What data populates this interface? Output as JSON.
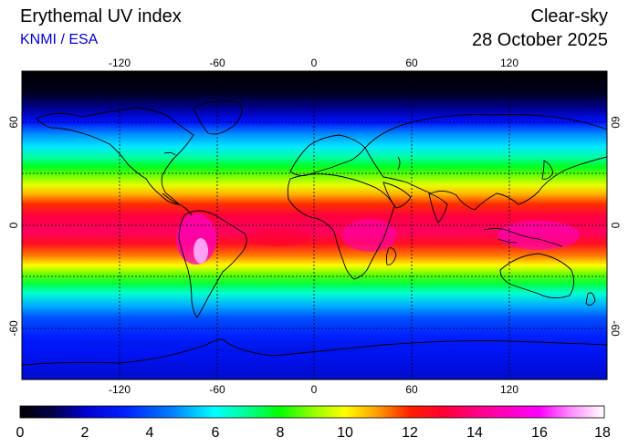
{
  "header": {
    "title": "Erythemal UV index",
    "source": "KNMI / ESA",
    "condition": "Clear-sky",
    "date": "28 October 2025"
  },
  "map": {
    "projection": "equirectangular",
    "lon_range": [
      -180,
      180
    ],
    "lat_range": [
      -90,
      90
    ],
    "graticule": "dashed",
    "lon_ticks": [
      "-120",
      "-60",
      "0",
      "60",
      "120"
    ],
    "lat_ticks": [
      "60",
      "0",
      "-60"
    ]
  },
  "colorbar": {
    "min": 0,
    "max": 18,
    "labels": [
      "0",
      "2",
      "4",
      "6",
      "8",
      "10",
      "12",
      "14",
      "16",
      "18"
    ],
    "colors": [
      "#000000",
      "#000060",
      "#0000ff",
      "#0090ff",
      "#00ffff",
      "#00ff80",
      "#00ff00",
      "#a0ff00",
      "#ffff00",
      "#ffa000",
      "#ff3000",
      "#ff0040",
      "#ff0090",
      "#ff00ff",
      "#ffa0ff",
      "#ffffff"
    ]
  }
}
